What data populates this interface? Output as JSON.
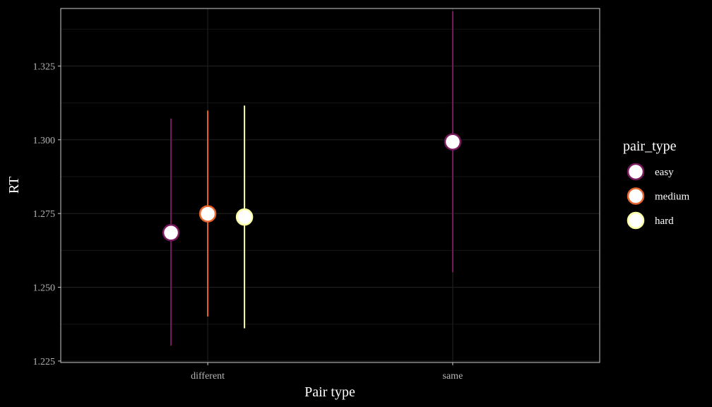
{
  "chart_data": {
    "type": "scatter",
    "subtype": "pointrange",
    "xlabel": "Pair type",
    "ylabel": "RT",
    "categories": [
      "different",
      "same"
    ],
    "ylim": [
      1.2245,
      1.3445
    ],
    "yticks": [
      1.225,
      1.25,
      1.275,
      1.3,
      1.325
    ],
    "ytick_labels": [
      "1.225",
      "1.250",
      "1.275",
      "1.300",
      "1.325"
    ],
    "grid": true,
    "legend": {
      "title": "pair_type",
      "position": "right",
      "entries": [
        "easy",
        "medium",
        "hard"
      ]
    },
    "series": [
      {
        "name": "easy",
        "color": "#7a1a5e",
        "points": [
          {
            "category": "different",
            "y": 1.2685,
            "ymin": 1.2302,
            "ymax": 1.3072
          },
          {
            "category": "same",
            "y": 1.2993,
            "ymin": 1.2551,
            "ymax": 1.3435
          }
        ]
      },
      {
        "name": "medium",
        "color": "#e8642c",
        "points": [
          {
            "category": "different",
            "y": 1.2749,
            "ymin": 1.2401,
            "ymax": 1.3099
          }
        ]
      },
      {
        "name": "hard",
        "color": "#fcffa4",
        "points": [
          {
            "category": "different",
            "y": 1.2738,
            "ymin": 1.2361,
            "ymax": 1.3116
          }
        ]
      }
    ],
    "dodge": 0.15,
    "point_fill": "#ffffff",
    "background": "#000000",
    "grid_color": "#1f1f1f",
    "panel_border_color": "#cccccc"
  }
}
